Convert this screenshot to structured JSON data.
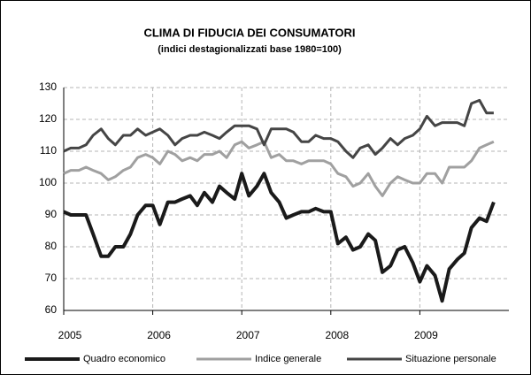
{
  "chart_data": {
    "type": "line",
    "title": "CLIMA DI FIDUCIA DEI CONSUMATORI",
    "subtitle": "(indici destagionalizzati  base 1980=100)",
    "x": [
      2005,
      2005.08,
      2005.17,
      2005.25,
      2005.33,
      2005.42,
      2005.5,
      2005.58,
      2005.67,
      2005.75,
      2005.83,
      2005.92,
      2006,
      2006.08,
      2006.17,
      2006.25,
      2006.33,
      2006.42,
      2006.5,
      2006.58,
      2006.67,
      2006.75,
      2006.83,
      2006.92,
      2007,
      2007.08,
      2007.17,
      2007.25,
      2007.33,
      2007.42,
      2007.5,
      2007.58,
      2007.67,
      2007.75,
      2007.83,
      2007.92,
      2008,
      2008.08,
      2008.17,
      2008.25,
      2008.33,
      2008.42,
      2008.5,
      2008.58,
      2008.67,
      2008.75,
      2008.83,
      2008.92,
      2009,
      2009.08,
      2009.17,
      2009.25,
      2009.33,
      2009.42,
      2009.5,
      2009.58,
      2009.67,
      2009.75,
      2009.83
    ],
    "xlim": [
      2005,
      2010
    ],
    "xticks": [
      2005,
      2006,
      2007,
      2008,
      2009
    ],
    "ylim": [
      60,
      130
    ],
    "yticks": [
      60,
      70,
      80,
      90,
      100,
      110,
      120,
      130
    ],
    "grid": true,
    "legend": "bottom",
    "series": [
      {
        "name": "Quadro economico",
        "color": "#1a1a1a",
        "values": [
          91,
          90,
          90,
          90,
          84,
          77,
          77,
          80,
          80,
          84,
          90,
          93,
          93,
          87,
          94,
          94,
          95,
          96,
          93,
          97,
          94,
          99,
          97,
          95,
          103,
          96,
          99,
          103,
          97,
          94,
          89,
          90,
          91,
          91,
          92,
          91,
          91,
          81,
          83,
          79,
          80,
          84,
          82,
          72,
          74,
          79,
          80,
          75,
          69,
          74,
          71,
          63,
          73,
          76,
          78,
          86,
          89,
          88,
          94
        ]
      },
      {
        "name": "Indice generale",
        "color": "#a0a0a0",
        "values": [
          103,
          104,
          104,
          105,
          104,
          103,
          101,
          102,
          104,
          105,
          108,
          109,
          108,
          106,
          110,
          109,
          107,
          108,
          107,
          109,
          109,
          110,
          108,
          112,
          113,
          111,
          112,
          113,
          108,
          109,
          107,
          107,
          106,
          107,
          107,
          107,
          106,
          103,
          102,
          99,
          100,
          103,
          99,
          96,
          100,
          102,
          101,
          100,
          100,
          103,
          103,
          100,
          105,
          105,
          105,
          107,
          111,
          112,
          113
        ]
      },
      {
        "name": "Situazione personale",
        "color": "#454545",
        "values": [
          110,
          111,
          111,
          112,
          115,
          117,
          114,
          112,
          115,
          115,
          117,
          115,
          116,
          117,
          115,
          112,
          114,
          115,
          115,
          116,
          115,
          114,
          116,
          118,
          118,
          118,
          117,
          112,
          117,
          117,
          117,
          116,
          113,
          113,
          115,
          114,
          114,
          113,
          110,
          108,
          111,
          112,
          109,
          111,
          114,
          112,
          114,
          115,
          117,
          121,
          118,
          119,
          119,
          119,
          118,
          125,
          126,
          122,
          122
        ]
      }
    ]
  }
}
